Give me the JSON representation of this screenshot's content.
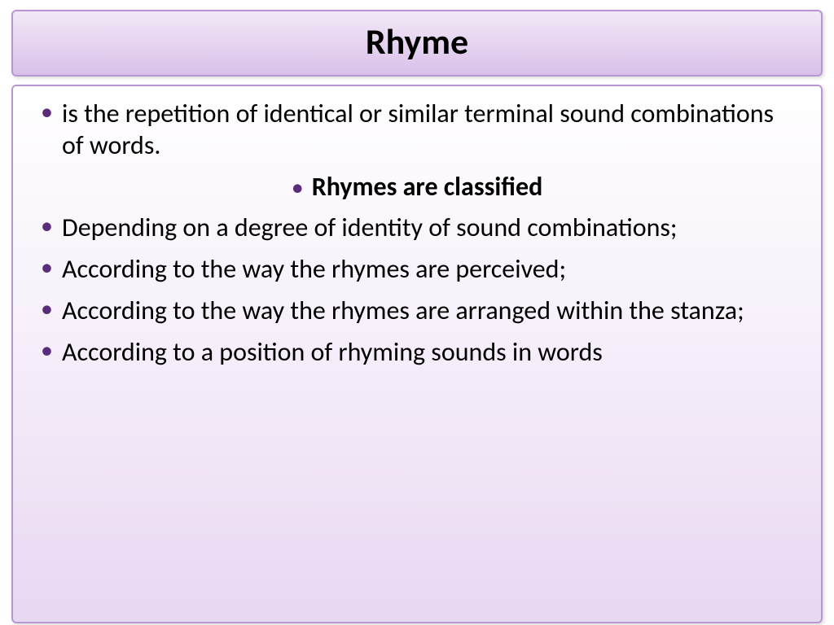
{
  "slide": {
    "title": "Rhyme",
    "bullets": [
      {
        "text": "is the repetition of identical or similar terminal sound combinations of words.",
        "bold": false,
        "centered": false
      },
      {
        "text": "Rhymes are classified",
        "bold": true,
        "centered": true
      },
      {
        "text": "Depending on a degree of identity of sound combinations;",
        "bold": false,
        "centered": false
      },
      {
        "text": "According to the way the rhymes are perceived;",
        "bold": false,
        "centered": false
      },
      {
        "text": "According to the way the rhymes are arranged within the stanza;",
        "bold": false,
        "centered": false
      },
      {
        "text": "According to a position of rhyming sounds in words",
        "bold": false,
        "centered": false
      }
    ]
  },
  "style": {
    "title_fontsize": 44,
    "body_fontsize": 32,
    "title_gradient": [
      "#f2e8f7",
      "#e6d4f0",
      "#d9c0e9"
    ],
    "content_gradient": [
      "#ffffff",
      "#f8f2fb",
      "#e8d8f2"
    ],
    "border_color": "#b896d4",
    "bullet_color": "#5a2d7a",
    "text_color": "#000000",
    "background_color": "#ffffff",
    "border_radius": 6
  }
}
